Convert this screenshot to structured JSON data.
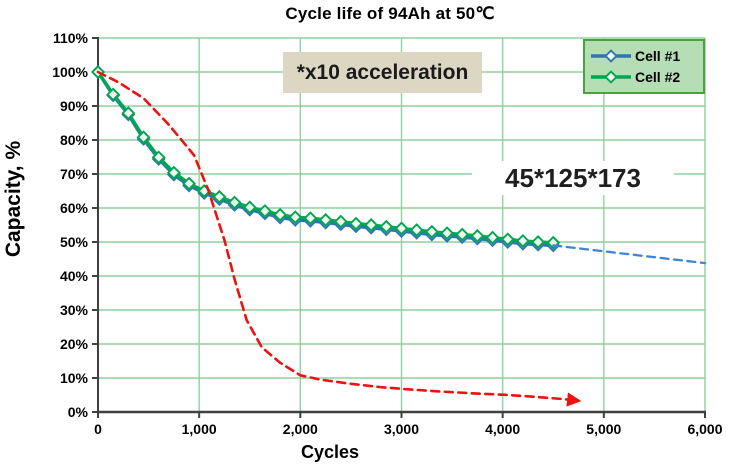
{
  "chart_data": {
    "type": "line",
    "title": "Cycle life of 94Ah at 50℃",
    "xlabel": "Cycles",
    "ylabel": "Capacity, %",
    "xlim": [
      0,
      6000
    ],
    "ylim": [
      0,
      110
    ],
    "grid": true,
    "legend_position": "top-right",
    "x_tick_values": [
      0,
      1000,
      2000,
      3000,
      4000,
      5000,
      6000
    ],
    "x_tick_labels": [
      "0",
      "1,000",
      "2,000",
      "3,000",
      "4,000",
      "5,000",
      "6,000"
    ],
    "y_tick_values": [
      0,
      10,
      20,
      30,
      40,
      50,
      60,
      70,
      80,
      90,
      100,
      110
    ],
    "y_tick_labels": [
      "0%",
      "10%",
      "20%",
      "30%",
      "40%",
      "50%",
      "60%",
      "70%",
      "80%",
      "90%",
      "100%",
      "110%"
    ],
    "colors": {
      "grid": "#8fd19e",
      "axis": "#404040",
      "marker_fill": "#f0f8ee",
      "legend_bg": "#b5deb5",
      "legend_border": "#4aa23c",
      "accel_box_bg": "#dbd7c3"
    },
    "series": [
      {
        "name": "Cell #1",
        "color": "#2e75b6",
        "style": "solid",
        "width": 3.4,
        "marker": "diamond",
        "in_legend": true,
        "points": [
          [
            0,
            100
          ],
          [
            150,
            93.1
          ],
          [
            300,
            87.5
          ],
          [
            450,
            80.3
          ],
          [
            600,
            74.4
          ],
          [
            750,
            69.8
          ],
          [
            900,
            66.6
          ],
          [
            1050,
            64.4
          ],
          [
            1200,
            62.6
          ],
          [
            1350,
            60.9
          ],
          [
            1500,
            59.5
          ],
          [
            1650,
            58.4
          ],
          [
            1800,
            57.2
          ],
          [
            1950,
            56.5
          ],
          [
            2100,
            56.2
          ],
          [
            2250,
            55.7
          ],
          [
            2400,
            55.2
          ],
          [
            2550,
            54.6
          ],
          [
            2700,
            54.2
          ],
          [
            2850,
            53.7
          ],
          [
            3000,
            53.2
          ],
          [
            3150,
            52.7
          ],
          [
            3300,
            52.2
          ],
          [
            3450,
            51.8
          ],
          [
            3600,
            51.4
          ],
          [
            3750,
            51.0
          ],
          [
            3900,
            50.5
          ],
          [
            4050,
            50.0
          ],
          [
            4200,
            49.5
          ],
          [
            4350,
            49.2
          ],
          [
            4500,
            49.0
          ]
        ]
      },
      {
        "name": "Cell #2",
        "color": "#00a651",
        "style": "solid",
        "width": 3.4,
        "marker": "diamond",
        "in_legend": true,
        "points": [
          [
            0,
            100
          ],
          [
            150,
            93.4
          ],
          [
            300,
            87.9
          ],
          [
            450,
            80.8
          ],
          [
            600,
            74.9
          ],
          [
            750,
            70.4
          ],
          [
            900,
            67.2
          ],
          [
            1050,
            65.0
          ],
          [
            1200,
            63.3
          ],
          [
            1350,
            61.6
          ],
          [
            1500,
            60.2
          ],
          [
            1650,
            59.1
          ],
          [
            1800,
            58.0
          ],
          [
            1950,
            57.3
          ],
          [
            2100,
            57.0
          ],
          [
            2250,
            56.5
          ],
          [
            2400,
            56.0
          ],
          [
            2550,
            55.4
          ],
          [
            2700,
            55.0
          ],
          [
            2850,
            54.5
          ],
          [
            3000,
            54.0
          ],
          [
            3150,
            53.5
          ],
          [
            3300,
            53.0
          ],
          [
            3450,
            52.6
          ],
          [
            3600,
            52.2
          ],
          [
            3750,
            51.8
          ],
          [
            3900,
            51.3
          ],
          [
            4050,
            50.8
          ],
          [
            4200,
            50.3
          ],
          [
            4350,
            50.0
          ],
          [
            4500,
            49.8
          ]
        ]
      },
      {
        "name": "projection",
        "color": "#3d85d8",
        "style": "dashed",
        "width": 2.3,
        "marker": "none",
        "in_legend": false,
        "points": [
          [
            4500,
            49.0
          ],
          [
            6000,
            43.8
          ]
        ]
      },
      {
        "name": "*x10 acceleration",
        "color": "#ee1111",
        "style": "dashed",
        "width": 2.6,
        "marker": "none",
        "arrow_end": true,
        "in_legend": false,
        "points": [
          [
            0,
            100
          ],
          [
            200,
            97
          ],
          [
            450,
            92.3
          ],
          [
            700,
            84.5
          ],
          [
            950,
            75.5
          ],
          [
            1090,
            65.3
          ],
          [
            1250,
            50.5
          ],
          [
            1350,
            39
          ],
          [
            1470,
            27
          ],
          [
            1620,
            19
          ],
          [
            1800,
            14.5
          ],
          [
            2000,
            10.8
          ],
          [
            2200,
            9.5
          ],
          [
            2500,
            8.3
          ],
          [
            2800,
            7.3
          ],
          [
            3100,
            6.6
          ],
          [
            3400,
            6.0
          ],
          [
            3700,
            5.5
          ],
          [
            4000,
            5.1
          ],
          [
            4300,
            4.5
          ],
          [
            4600,
            3.8
          ],
          [
            4750,
            3.3
          ]
        ]
      }
    ],
    "annotations": [
      {
        "text": "*x10 acceleration",
        "bg": "#dbd7c3"
      },
      {
        "text": "45*125*173",
        "bg": "#ffffff"
      }
    ]
  }
}
